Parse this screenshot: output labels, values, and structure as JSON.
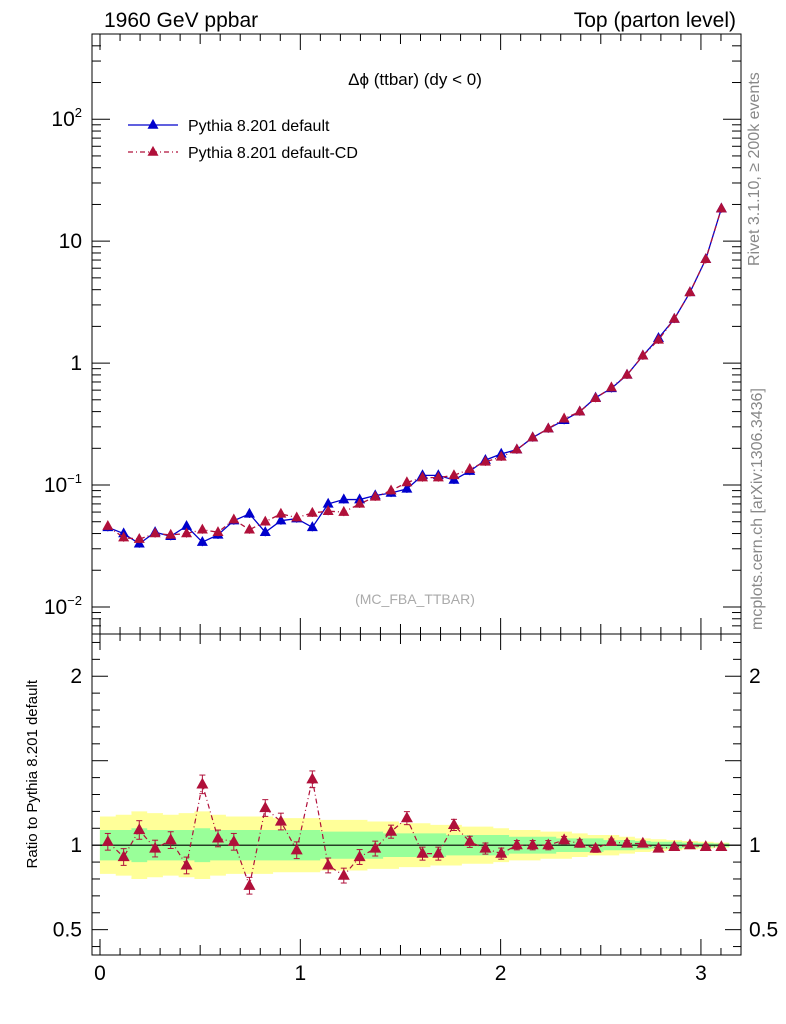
{
  "header": {
    "left": "1960 GeV ppbar",
    "right": "Top (parton level)"
  },
  "side_labels": {
    "rivet": "Rivet 3.1.10, ≥ 200k events",
    "mcplots": "mcplots.cern.ch [arXiv:1306.3436]"
  },
  "chart_data": [
    {
      "type": "line",
      "title": "Δϕ (ttbar) (dy < 0)",
      "watermark": "(MC_FBA_TTBAR)",
      "yscale": "log",
      "xlim": [
        -0.04,
        3.2
      ],
      "ylim": [
        0.006,
        500
      ],
      "y_ticks": [
        {
          "value": 0.01,
          "base": "10",
          "exp": "−2"
        },
        {
          "value": 0.1,
          "base": "10",
          "exp": "−1"
        },
        {
          "value": 1,
          "label": "1"
        },
        {
          "value": 10,
          "label": "10"
        },
        {
          "value": 100,
          "base": "10",
          "exp": "2"
        }
      ],
      "legend_position": "top-left",
      "x": [
        0.039,
        0.118,
        0.196,
        0.275,
        0.353,
        0.432,
        0.511,
        0.589,
        0.668,
        0.746,
        0.825,
        0.903,
        0.982,
        1.06,
        1.139,
        1.217,
        1.296,
        1.374,
        1.453,
        1.532,
        1.61,
        1.689,
        1.767,
        1.846,
        1.924,
        2.003,
        2.081,
        2.16,
        2.238,
        2.317,
        2.395,
        2.474,
        2.553,
        2.631,
        2.71,
        2.788,
        2.867,
        2.945,
        3.024,
        3.102
      ],
      "series": [
        {
          "name": "Pythia 8.201 default",
          "color": "#0000cc",
          "marker": "triangle",
          "values": [
            0.045,
            0.04,
            0.033,
            0.041,
            0.038,
            0.046,
            0.034,
            0.039,
            0.051,
            0.058,
            0.041,
            0.051,
            0.053,
            0.045,
            0.07,
            0.076,
            0.076,
            0.082,
            0.086,
            0.093,
            0.12,
            0.12,
            0.11,
            0.13,
            0.16,
            0.18,
            0.195,
            0.245,
            0.29,
            0.34,
            0.4,
            0.52,
            0.62,
            0.8,
            1.15,
            1.6,
            2.3,
            3.8,
            7.1,
            18.5
          ]
        },
        {
          "name": "Pythia 8.201 default-CD",
          "color": "#b0103a",
          "marker": "triangle",
          "values": [
            0.046,
            0.037,
            0.036,
            0.04,
            0.039,
            0.04,
            0.043,
            0.041,
            0.052,
            0.043,
            0.05,
            0.058,
            0.054,
            0.059,
            0.061,
            0.06,
            0.07,
            0.08,
            0.09,
            0.105,
            0.115,
            0.115,
            0.12,
            0.135,
            0.155,
            0.17,
            0.195,
            0.245,
            0.29,
            0.35,
            0.4,
            0.515,
            0.63,
            0.8,
            1.15,
            1.55,
            2.3,
            3.8,
            7.1,
            18.5
          ]
        }
      ]
    },
    {
      "type": "line",
      "ylabel": "Ratio to Pythia 8.201 default",
      "xlim": [
        -0.04,
        3.2
      ],
      "ylim": [
        0.35,
        2.25
      ],
      "x_ticks": [
        0,
        1,
        2,
        3
      ],
      "y_ticks": [
        0.5,
        1,
        2
      ],
      "reference_line": 1,
      "x": [
        0.039,
        0.118,
        0.196,
        0.275,
        0.353,
        0.432,
        0.511,
        0.589,
        0.668,
        0.746,
        0.825,
        0.903,
        0.982,
        1.06,
        1.139,
        1.217,
        1.296,
        1.374,
        1.453,
        1.532,
        1.61,
        1.689,
        1.767,
        1.846,
        1.924,
        2.003,
        2.081,
        2.16,
        2.238,
        2.317,
        2.395,
        2.474,
        2.553,
        2.631,
        2.71,
        2.788,
        2.867,
        2.945,
        3.024,
        3.102
      ],
      "band_inner_halfwidth": [
        0.09,
        0.09,
        0.1,
        0.09,
        0.09,
        0.09,
        0.1,
        0.09,
        0.09,
        0.09,
        0.09,
        0.09,
        0.09,
        0.09,
        0.08,
        0.08,
        0.08,
        0.08,
        0.07,
        0.07,
        0.07,
        0.07,
        0.06,
        0.06,
        0.06,
        0.06,
        0.05,
        0.05,
        0.05,
        0.04,
        0.04,
        0.04,
        0.03,
        0.03,
        0.025,
        0.02,
        0.02,
        0.015,
        0.012,
        0.01
      ],
      "band_outer_halfwidth": [
        0.17,
        0.18,
        0.2,
        0.19,
        0.18,
        0.19,
        0.2,
        0.18,
        0.17,
        0.17,
        0.17,
        0.16,
        0.16,
        0.16,
        0.15,
        0.15,
        0.15,
        0.14,
        0.14,
        0.13,
        0.13,
        0.12,
        0.12,
        0.11,
        0.11,
        0.1,
        0.09,
        0.09,
        0.08,
        0.08,
        0.07,
        0.06,
        0.06,
        0.05,
        0.04,
        0.035,
        0.03,
        0.025,
        0.02,
        0.015
      ],
      "series": [
        {
          "name": "Pythia 8.201 default-CD",
          "color": "#b0103a",
          "values": [
            1.02,
            0.93,
            1.09,
            0.98,
            1.03,
            0.88,
            1.36,
            1.04,
            1.02,
            0.76,
            1.22,
            1.14,
            0.97,
            1.39,
            0.88,
            0.82,
            0.93,
            0.98,
            1.08,
            1.16,
            0.95,
            0.95,
            1.12,
            1.02,
            0.98,
            0.95,
            1.0,
            1.0,
            1.0,
            1.03,
            1.01,
            0.98,
            1.02,
            1.01,
            1.01,
            0.98,
            0.99,
            1.0,
            0.99,
            0.99
          ]
        }
      ]
    }
  ]
}
